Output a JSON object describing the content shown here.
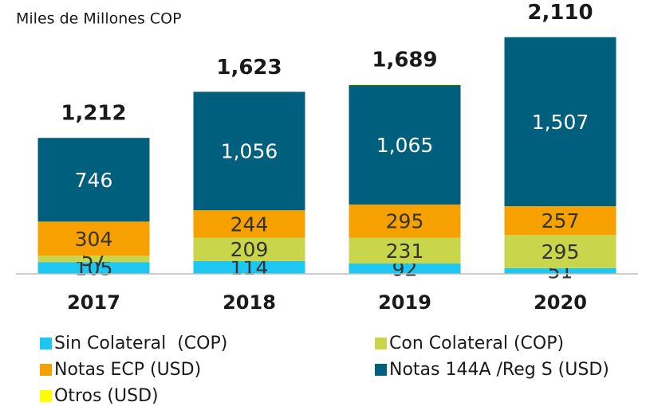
{
  "chart_data": {
    "type": "stacked_bar",
    "subtitle": "Miles de Millones COP",
    "categories": [
      "2017",
      "2018",
      "2019",
      "2020"
    ],
    "series": [
      {
        "name": "Sin Colateral  (COP)",
        "color": "#1ec6f2",
        "values": [
          105,
          114,
          92,
          51
        ]
      },
      {
        "name": "Con Colateral (COP)",
        "color": "#c9d64c",
        "values": [
          57,
          209,
          231,
          295
        ]
      },
      {
        "name": "Notas ECP (USD)",
        "color": "#f7a100",
        "values": [
          304,
          244,
          295,
          257
        ]
      },
      {
        "name": "Notas 144A /Reg S (USD)",
        "color": "#005f7d",
        "values": [
          746,
          1056,
          1065,
          1507
        ],
        "value_labels": [
          "746",
          "1,056",
          "1,065",
          "1,507"
        ]
      },
      {
        "name": "Otros (USD)",
        "color": "#ffff00",
        "values": [
          0,
          0,
          6,
          0
        ]
      }
    ],
    "totals": {
      "values": [
        1212,
        1623,
        1689,
        2110
      ],
      "value_labels": [
        "1,212",
        "1,623",
        "1,689",
        "2,110"
      ]
    },
    "ylim": [
      0,
      2200
    ]
  }
}
